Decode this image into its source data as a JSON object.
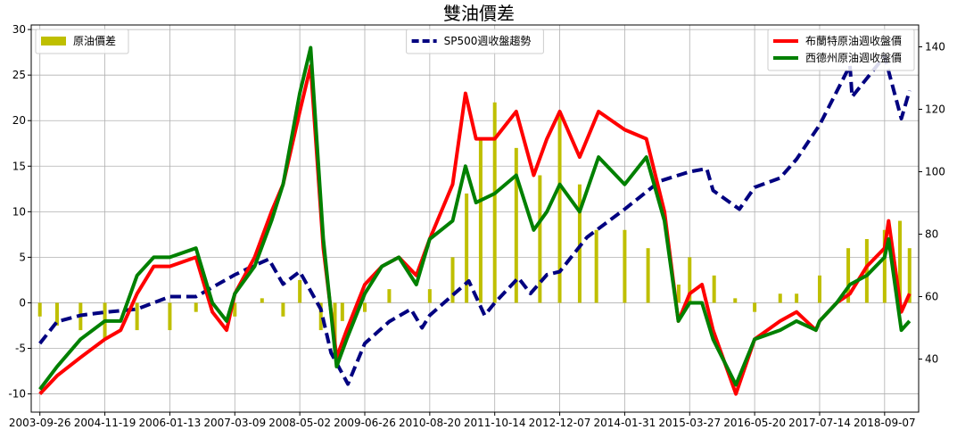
{
  "chart_data": {
    "type": "line",
    "title": "雙油價差",
    "colors": {
      "spread": "#bfbf00",
      "sp500": "#000080",
      "brent": "#ff0000",
      "wti": "#008000",
      "grid": "#b0b0b0"
    },
    "x_tick_labels": [
      "2003-09-26",
      "2004-11-19",
      "2006-01-13",
      "2007-03-09",
      "2008-05-02",
      "2009-06-26",
      "2010-08-20",
      "2011-10-14",
      "2012-12-07",
      "2014-01-31",
      "2015-03-27",
      "2016-05-20",
      "2017-07-14",
      "2018-09-07"
    ],
    "xlim": [
      "2003-08-01",
      "2019-04-15"
    ],
    "y_left": {
      "lim": [
        -12,
        30.5
      ],
      "ticks": [
        -10,
        -5,
        0,
        5,
        10,
        15,
        20,
        25,
        30
      ],
      "label": ""
    },
    "y_right": {
      "lim": [
        23,
        147
      ],
      "ticks": [
        40,
        60,
        80,
        100,
        120,
        140
      ],
      "label": ""
    },
    "grid": true,
    "legends": [
      {
        "placement": "top-left",
        "entries": [
          {
            "series": "spread",
            "label": "原油價差"
          }
        ]
      },
      {
        "placement": "top-center",
        "entries": [
          {
            "series": "sp500",
            "label": "SP500週收盤趨勢"
          }
        ]
      },
      {
        "placement": "top-right",
        "entries": [
          {
            "series": "brent",
            "label": "布蘭特原油週收盤價"
          },
          {
            "series": "wti",
            "label": "西德州原油週收盤價"
          }
        ]
      }
    ],
    "series": [
      {
        "key": "spread",
        "name": "原油價差",
        "kind": "bar",
        "axis": "left",
        "x": [
          "2003-09-26",
          "2004-01-15",
          "2004-06-15",
          "2004-11-19",
          "2005-06-15",
          "2006-01-13",
          "2006-07-01",
          "2007-03-09",
          "2007-09-01",
          "2008-01-15",
          "2008-05-02",
          "2008-09-15",
          "2008-12-15",
          "2009-02-01",
          "2009-06-26",
          "2009-12-01",
          "2010-08-20",
          "2011-01-15",
          "2011-04-15",
          "2011-07-15",
          "2011-10-14",
          "2012-03-01",
          "2012-08-01",
          "2012-12-07",
          "2013-04-15",
          "2013-08-01",
          "2014-01-31",
          "2014-07-01",
          "2015-01-15",
          "2015-03-27",
          "2015-09-01",
          "2016-01-15",
          "2016-05-20",
          "2016-11-01",
          "2017-02-15",
          "2017-07-14",
          "2018-01-15",
          "2018-05-15",
          "2018-09-07",
          "2018-12-15",
          "2019-02-15"
        ],
        "values": [
          -1.5,
          -2.5,
          -3,
          -4,
          -3,
          -3,
          -1,
          -1.5,
          0.5,
          -1.5,
          2.5,
          -3,
          -6,
          -2,
          -1,
          1.5,
          1.5,
          5,
          12,
          18,
          22,
          17,
          14,
          21,
          13,
          8,
          8,
          6,
          2,
          5,
          3,
          0.5,
          -1,
          1,
          1,
          3,
          6,
          7,
          8,
          9,
          6
        ]
      },
      {
        "key": "sp500",
        "name": "SP500週收盤趨勢",
        "kind": "line",
        "dashed": true,
        "axis": "right",
        "x": [
          "2003-09-26",
          "2004-01-15",
          "2004-06-15",
          "2004-11-19",
          "2005-06-15",
          "2006-01-13",
          "2006-07-01",
          "2007-03-09",
          "2007-07-15",
          "2007-10-15",
          "2008-01-15",
          "2008-05-02",
          "2008-09-15",
          "2008-11-20",
          "2009-03-09",
          "2009-06-26",
          "2009-12-01",
          "2010-04-20",
          "2010-07-01",
          "2010-08-20",
          "2011-04-29",
          "2011-08-10",
          "2011-10-14",
          "2012-03-15",
          "2012-06-01",
          "2012-09-15",
          "2012-12-07",
          "2013-06-01",
          "2014-01-31",
          "2014-09-15",
          "2015-03-27",
          "2015-07-15",
          "2015-08-25",
          "2016-02-11",
          "2016-05-20",
          "2016-11-01",
          "2017-02-15",
          "2017-07-14",
          "2018-01-26",
          "2018-02-09",
          "2018-09-07",
          "2018-12-24",
          "2019-02-15"
        ],
        "values": [
          45,
          52,
          54,
          55,
          56,
          60,
          60,
          67,
          70,
          72,
          64,
          68,
          56,
          42,
          32,
          45,
          52,
          56,
          50,
          54,
          65,
          54,
          58,
          66,
          61,
          67,
          68,
          79,
          88,
          97,
          100,
          101,
          94,
          88,
          95,
          98,
          104,
          115,
          134,
          124,
          137,
          117,
          126
        ]
      },
      {
        "key": "brent",
        "name": "布蘭特原油週收盤價",
        "kind": "line",
        "axis": "left",
        "x": [
          "2003-09-26",
          "2004-01-15",
          "2004-06-15",
          "2004-11-19",
          "2005-03-01",
          "2005-06-15",
          "2005-10-01",
          "2006-01-13",
          "2006-07-01",
          "2006-10-15",
          "2007-01-15",
          "2007-03-09",
          "2007-07-15",
          "2007-11-01",
          "2008-01-15",
          "2008-05-02",
          "2008-07-11",
          "2008-10-01",
          "2008-12-26",
          "2009-03-01",
          "2009-06-26",
          "2009-10-15",
          "2010-02-01",
          "2010-05-25",
          "2010-08-20",
          "2011-01-15",
          "2011-04-08",
          "2011-06-15",
          "2011-10-14",
          "2012-03-01",
          "2012-06-22",
          "2012-09-15",
          "2012-12-07",
          "2013-04-15",
          "2013-08-15",
          "2014-01-31",
          "2014-06-20",
          "2014-10-15",
          "2015-01-13",
          "2015-03-27",
          "2015-06-15",
          "2015-08-25",
          "2016-01-20",
          "2016-05-20",
          "2016-11-01",
          "2017-02-15",
          "2017-06-20",
          "2017-07-14",
          "2017-11-01",
          "2018-01-26",
          "2018-05-15",
          "2018-09-07",
          "2018-10-03",
          "2018-12-24",
          "2019-02-15"
        ],
        "values": [
          -10,
          -8,
          -6,
          -4,
          -3,
          1,
          4,
          4,
          5,
          -1,
          -3,
          1,
          5,
          10,
          13,
          21,
          26,
          6,
          -6,
          -3,
          2,
          4,
          5,
          3,
          7,
          13,
          23,
          18,
          18,
          21,
          14,
          18,
          21,
          16,
          21,
          19,
          18,
          10,
          -2,
          1,
          2,
          -3,
          -10,
          -4,
          -2,
          -1,
          -3,
          -2,
          0,
          1,
          4,
          6,
          9,
          -1,
          1
        ]
      },
      {
        "key": "wti",
        "name": "西德州原油週收盤價",
        "kind": "line",
        "axis": "left",
        "x": [
          "2003-09-26",
          "2004-01-15",
          "2004-06-15",
          "2004-11-19",
          "2005-03-01",
          "2005-06-15",
          "2005-10-01",
          "2006-01-13",
          "2006-07-01",
          "2006-10-15",
          "2007-01-15",
          "2007-03-09",
          "2007-07-15",
          "2007-11-01",
          "2008-01-15",
          "2008-05-02",
          "2008-07-11",
          "2008-10-01",
          "2008-12-26",
          "2009-03-01",
          "2009-06-26",
          "2009-10-15",
          "2010-02-01",
          "2010-05-25",
          "2010-08-20",
          "2011-01-15",
          "2011-04-08",
          "2011-06-15",
          "2011-10-14",
          "2012-03-01",
          "2012-06-22",
          "2012-09-15",
          "2012-12-07",
          "2013-04-15",
          "2013-08-15",
          "2014-01-31",
          "2014-06-20",
          "2014-10-15",
          "2015-01-13",
          "2015-03-27",
          "2015-06-15",
          "2015-08-25",
          "2016-01-20",
          "2016-05-20",
          "2016-11-01",
          "2017-02-15",
          "2017-06-20",
          "2017-07-14",
          "2017-11-01",
          "2018-01-26",
          "2018-05-15",
          "2018-09-07",
          "2018-10-03",
          "2018-12-24",
          "2019-02-15"
        ],
        "values": [
          -9.5,
          -7,
          -4,
          -2,
          -2,
          3,
          5,
          5,
          6,
          0,
          -2,
          1,
          4,
          9,
          13,
          23,
          28,
          7,
          -7,
          -4,
          1,
          4,
          5,
          2,
          7,
          9,
          15,
          11,
          12,
          14,
          8,
          10,
          13,
          10,
          16,
          13,
          16,
          9,
          -2,
          0,
          0,
          -4,
          -9,
          -4,
          -3,
          -2,
          -3,
          -2,
          0,
          2,
          3,
          5,
          7,
          -3,
          -2
        ]
      }
    ]
  }
}
